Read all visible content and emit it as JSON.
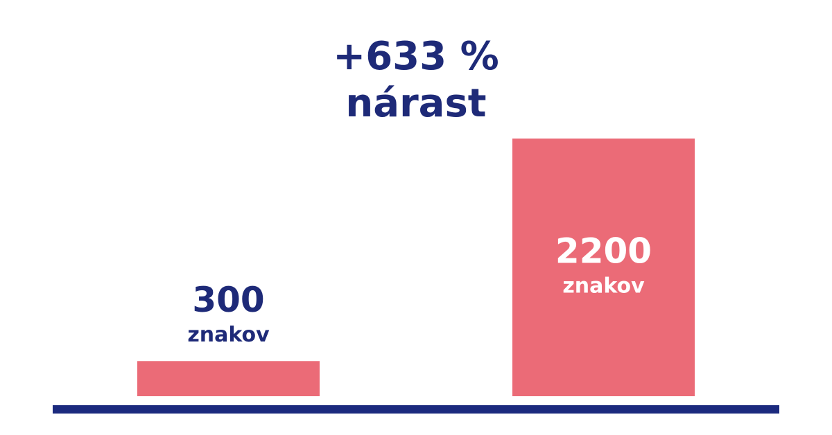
{
  "chart_data": {
    "type": "bar",
    "title": [
      "+633 %",
      "nárast"
    ],
    "values": [
      300,
      2200
    ],
    "unit_label": "znakov",
    "color": "#eb6b77",
    "axis_color": "#1b2a7e"
  }
}
